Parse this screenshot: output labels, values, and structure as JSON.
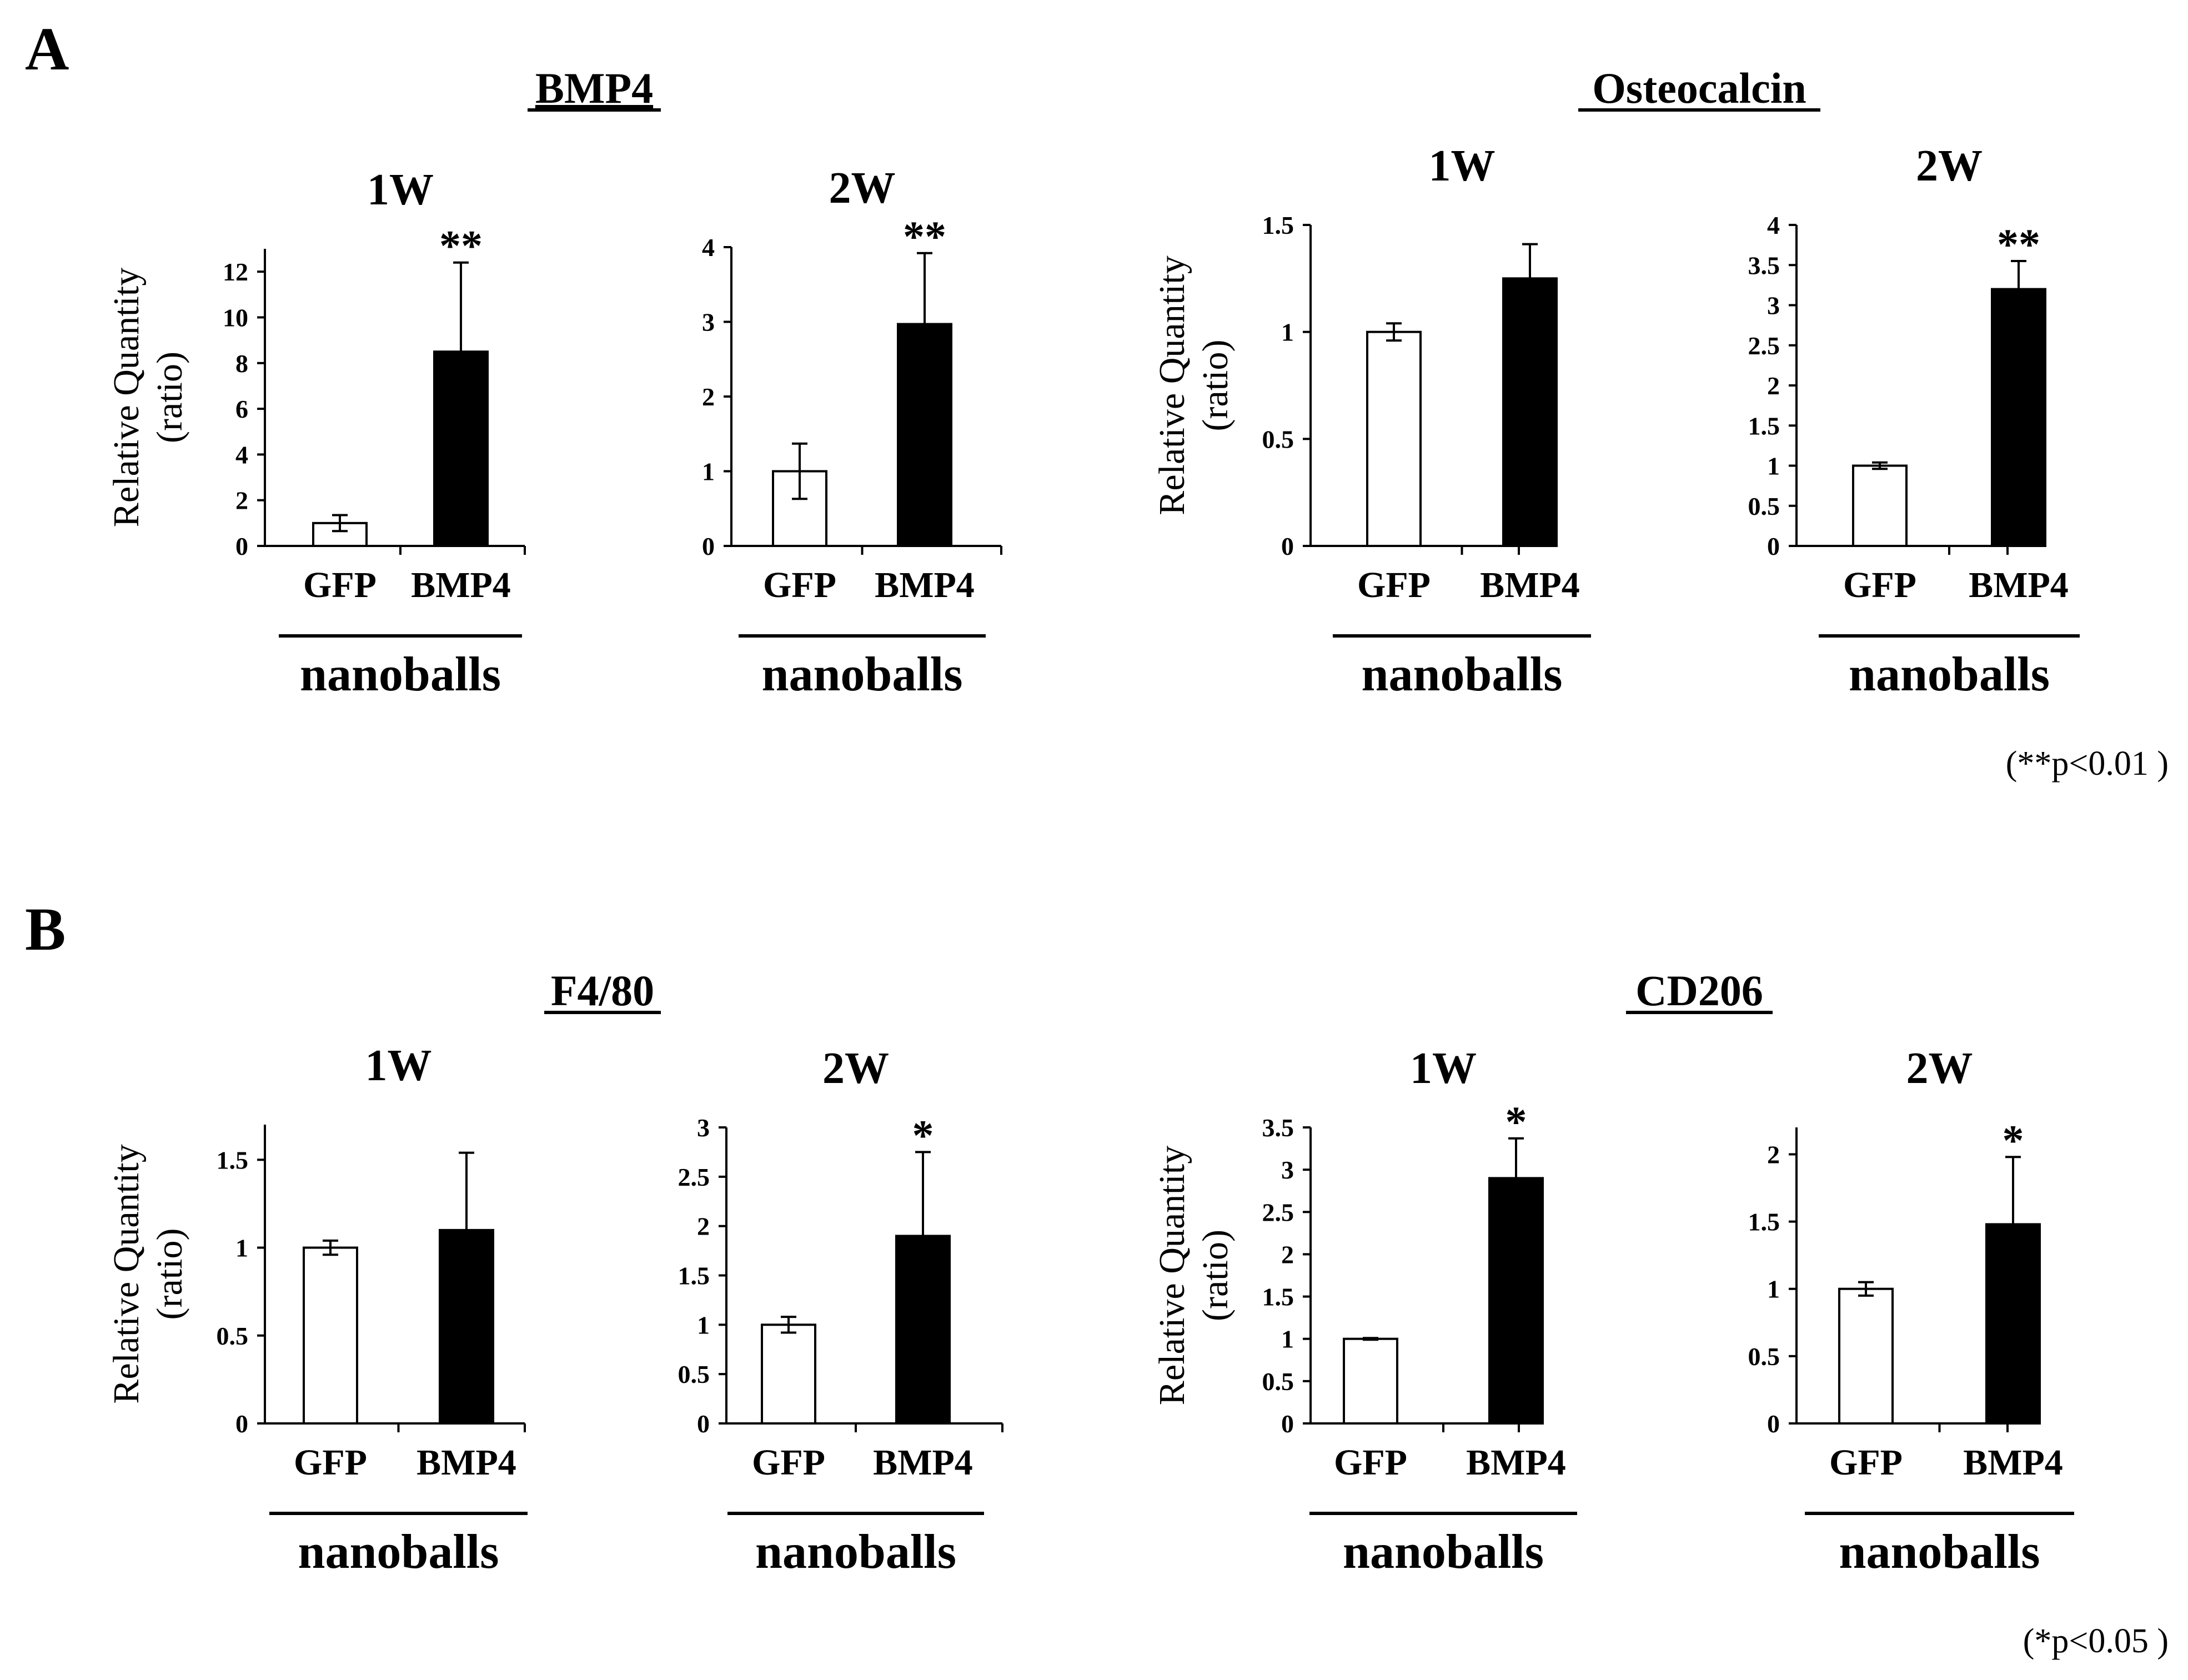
{
  "panels": [
    {
      "letter": "A",
      "footnote": "(**p<0.01 )",
      "gene_titles": [
        "BMP4",
        "Osteocalcin"
      ]
    },
    {
      "letter": "B",
      "footnote": "(*p<0.05 )",
      "gene_titles": [
        "F4/80",
        "CD206"
      ]
    }
  ],
  "common": {
    "ylabel_line1": "Relative Quantity",
    "ylabel_line2": "(ratio)",
    "group_label": "nanoballs"
  },
  "chart_data": [
    {
      "type": "bar",
      "panel": "A",
      "gene": "BMP4",
      "title": "1W",
      "categories": [
        "GFP",
        "BMP4"
      ],
      "values": [
        1.0,
        8.5
      ],
      "errors": [
        0.35,
        3.9
      ],
      "significance": [
        "",
        "**"
      ],
      "ylim": [
        0,
        13
      ],
      "yticks": [
        0,
        2,
        4,
        6,
        8,
        10,
        12
      ],
      "ytick_labels": [
        "0",
        "2",
        "4",
        "6",
        "8",
        "10",
        "12"
      ],
      "show_ylabel": true,
      "colors": [
        "#ffffff",
        "#000000"
      ]
    },
    {
      "type": "bar",
      "panel": "A",
      "gene": "BMP4",
      "title": "2W",
      "categories": [
        "GFP",
        "BMP4"
      ],
      "values": [
        1.0,
        2.97
      ],
      "errors": [
        0.37,
        0.95
      ],
      "significance": [
        "",
        "**"
      ],
      "ylim": [
        0,
        4
      ],
      "yticks": [
        0,
        1,
        2,
        3,
        4
      ],
      "ytick_labels": [
        "0",
        "1",
        "2",
        "3",
        "4"
      ],
      "show_ylabel": false,
      "colors": [
        "#ffffff",
        "#000000"
      ]
    },
    {
      "type": "bar",
      "panel": "A",
      "gene": "Osteocalcin",
      "title": "1W",
      "categories": [
        "GFP",
        "BMP4"
      ],
      "values": [
        1.0,
        1.25
      ],
      "errors": [
        0.04,
        0.16
      ],
      "significance": [
        "",
        ""
      ],
      "ylim": [
        0,
        1.5
      ],
      "yticks": [
        0,
        0.5,
        1,
        1.5
      ],
      "ytick_labels": [
        "0",
        "0.5",
        "1",
        "1.5"
      ],
      "show_ylabel": true,
      "colors": [
        "#ffffff",
        "#000000"
      ]
    },
    {
      "type": "bar",
      "panel": "A",
      "gene": "Osteocalcin",
      "title": "2W",
      "categories": [
        "GFP",
        "BMP4"
      ],
      "values": [
        1.0,
        3.2
      ],
      "errors": [
        0.04,
        0.35
      ],
      "significance": [
        "",
        "**"
      ],
      "ylim": [
        0,
        4
      ],
      "yticks": [
        0,
        0.5,
        1,
        1.5,
        2,
        2.5,
        3,
        3.5,
        4
      ],
      "ytick_labels": [
        "0",
        "0.5",
        "1",
        "1.5",
        "2",
        "2.5",
        "3",
        "3.5",
        "4"
      ],
      "show_ylabel": false,
      "colors": [
        "#ffffff",
        "#000000"
      ]
    },
    {
      "type": "bar",
      "panel": "B",
      "gene": "F4/80",
      "title": "1W",
      "categories": [
        "GFP",
        "BMP4"
      ],
      "values": [
        1.0,
        1.1
      ],
      "errors": [
        0.04,
        0.44
      ],
      "significance": [
        "",
        ""
      ],
      "ylim": [
        0,
        1.7
      ],
      "yticks": [
        0,
        0.5,
        1,
        1.5
      ],
      "ytick_labels": [
        "0",
        "0.5",
        "1",
        "1.5"
      ],
      "show_ylabel": true,
      "colors": [
        "#ffffff",
        "#000000"
      ]
    },
    {
      "type": "bar",
      "panel": "B",
      "gene": "F4/80",
      "title": "2W",
      "categories": [
        "GFP",
        "BMP4"
      ],
      "values": [
        1.0,
        1.9
      ],
      "errors": [
        0.08,
        0.85
      ],
      "significance": [
        "",
        "*"
      ],
      "ylim": [
        0,
        3
      ],
      "yticks": [
        0,
        0.5,
        1,
        1.5,
        2,
        2.5,
        3
      ],
      "ytick_labels": [
        "0",
        "0.5",
        "1",
        "1.5",
        "2",
        "2.5",
        "3"
      ],
      "show_ylabel": false,
      "colors": [
        "#ffffff",
        "#000000"
      ]
    },
    {
      "type": "bar",
      "panel": "B",
      "gene": "CD206",
      "title": "1W",
      "categories": [
        "GFP",
        "BMP4"
      ],
      "values": [
        1.0,
        2.9
      ],
      "errors": [
        0.01,
        0.47
      ],
      "significance": [
        "",
        "*"
      ],
      "ylim": [
        0,
        3.5
      ],
      "yticks": [
        0,
        0.5,
        1,
        1.5,
        2,
        2.5,
        3,
        3.5
      ],
      "ytick_labels": [
        "0",
        "0.5",
        "1",
        "1.5",
        "2",
        "2.5",
        "3",
        "3.5"
      ],
      "show_ylabel": true,
      "colors": [
        "#ffffff",
        "#000000"
      ]
    },
    {
      "type": "bar",
      "panel": "B",
      "gene": "CD206",
      "title": "2W",
      "categories": [
        "GFP",
        "BMP4"
      ],
      "values": [
        1.0,
        1.48
      ],
      "errors": [
        0.05,
        0.5
      ],
      "significance": [
        "",
        "*"
      ],
      "ylim": [
        0,
        2.2
      ],
      "yticks": [
        0,
        0.5,
        1,
        1.5,
        2
      ],
      "ytick_labels": [
        "0",
        "0.5",
        "1",
        "1.5",
        "2"
      ],
      "show_ylabel": false,
      "colors": [
        "#ffffff",
        "#000000"
      ]
    }
  ]
}
